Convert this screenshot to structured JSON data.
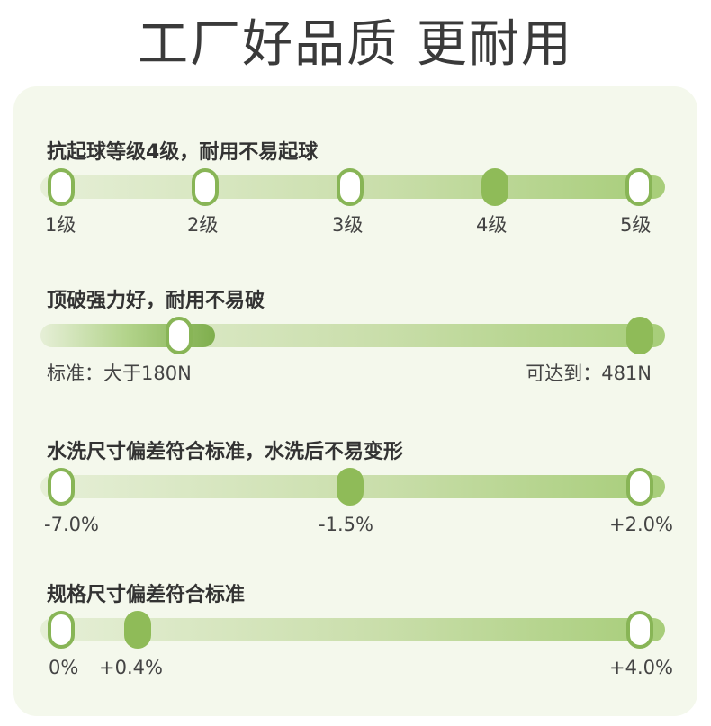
{
  "title": "工厂好品质 更耐用",
  "sections": [
    {
      "heading": "抗起球等级4级，耐用不易起球",
      "labels": [
        "1级",
        "2级",
        "3级",
        "4级",
        "5级"
      ],
      "current_level": 4
    },
    {
      "heading": "顶破强力好，耐用不易破",
      "labels": [
        "标准：大于180N",
        "可达到：481N"
      ],
      "standard_value": 180,
      "achieved_value": 481
    },
    {
      "heading": "水洗尺寸偏差符合标准，水洗后不易变形",
      "labels": [
        "-7.0%",
        "-1.5%",
        "+2.0%"
      ],
      "current_value": -1.5
    },
    {
      "heading": "规格尺寸偏差符合标准",
      "labels": [
        "0%",
        "+0.4%",
        "+4.0%"
      ],
      "current_value": 0.4
    }
  ],
  "colors": {
    "accent_green": "#8fbb58",
    "card_background": "#f4f8ec",
    "title_text": "#3a3a3a"
  }
}
